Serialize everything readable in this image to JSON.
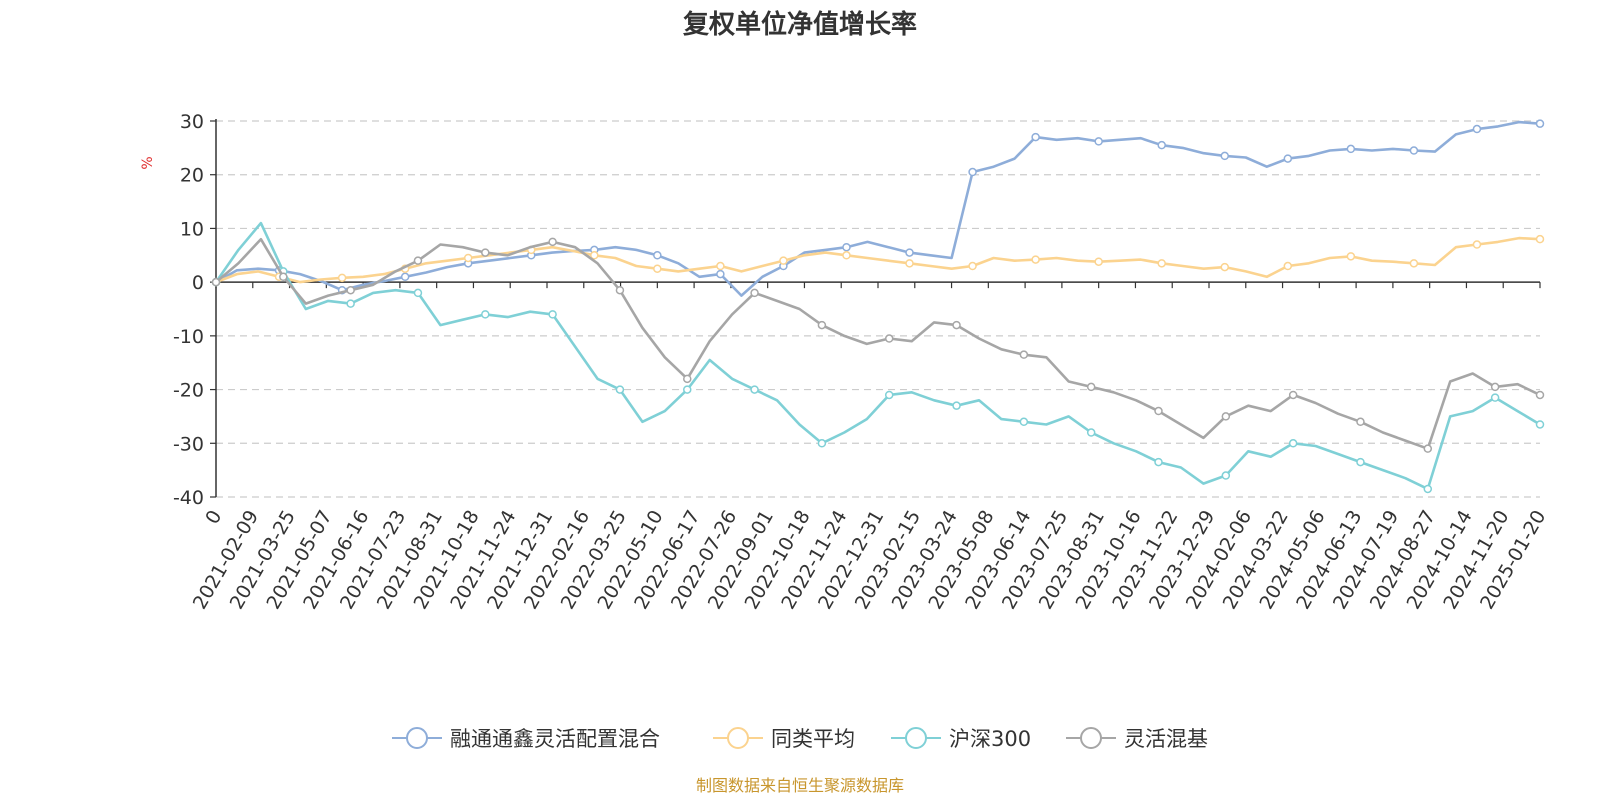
{
  "chart_data": {
    "type": "line",
    "title": "复权单位净值增长率",
    "ylabel": "%",
    "ylim": [
      -40,
      30
    ],
    "yticks": [
      30,
      20,
      10,
      0,
      -10,
      -20,
      -30,
      -40
    ],
    "x_tick_labels": [
      "0",
      "2021-02-09",
      "2021-03-25",
      "2021-05-07",
      "2021-06-16",
      "2021-07-23",
      "2021-08-31",
      "2021-10-18",
      "2021-11-24",
      "2021-12-31",
      "2022-02-16",
      "2022-03-25",
      "2022-05-10",
      "2022-06-17",
      "2022-07-26",
      "2022-09-01",
      "2022-10-18",
      "2022-11-24",
      "2022-12-31",
      "2023-02-15",
      "2023-03-24",
      "2023-05-08",
      "2023-06-14",
      "2023-07-25",
      "2023-08-31",
      "2023-10-16",
      "2023-11-22",
      "2023-12-29",
      "2024-02-06",
      "2024-03-22",
      "2024-05-06",
      "2024-06-13",
      "2024-07-19",
      "2024-08-27",
      "2024-10-14",
      "2024-11-20",
      "2025-01-20"
    ],
    "grid": "horizontal dashed",
    "legend_position": "bottom",
    "series": [
      {
        "name": "融通通鑫灵活配置混合",
        "color": "#8eadd9",
        "values": [
          0,
          2.2,
          2.5,
          2.2,
          1.5,
          0.2,
          -1.5,
          -0.5,
          0.2,
          1.0,
          1.8,
          2.8,
          3.5,
          4.0,
          4.5,
          5.0,
          5.5,
          5.8,
          6.0,
          6.5,
          6.0,
          5.0,
          3.5,
          1.0,
          1.5,
          -2.5,
          1.0,
          3.0,
          5.5,
          6.0,
          6.5,
          7.5,
          6.5,
          5.5,
          5.0,
          4.5,
          20.5,
          21.5,
          23.0,
          27.0,
          26.5,
          26.8,
          26.2,
          26.5,
          26.8,
          25.5,
          25.0,
          24.0,
          23.5,
          23.2,
          21.5,
          23.0,
          23.5,
          24.5,
          24.8,
          24.5,
          24.8,
          24.5,
          24.3,
          27.5,
          28.5,
          29.0,
          29.8,
          29.5
        ]
      },
      {
        "name": "同类平均",
        "color": "#fbd38f",
        "values": [
          0,
          1.5,
          2.0,
          1.0,
          0.0,
          0.5,
          0.8,
          1.0,
          1.5,
          2.5,
          3.5,
          4.0,
          4.5,
          5.0,
          5.5,
          6.0,
          6.5,
          5.8,
          5.0,
          4.5,
          3.0,
          2.5,
          2.0,
          2.5,
          3.0,
          2.0,
          3.0,
          4.0,
          5.0,
          5.5,
          5.0,
          4.5,
          4.0,
          3.5,
          3.0,
          2.5,
          3.0,
          4.5,
          4.0,
          4.2,
          4.5,
          4.0,
          3.8,
          4.0,
          4.2,
          3.5,
          3.0,
          2.5,
          2.8,
          2.0,
          1.0,
          3.0,
          3.5,
          4.5,
          4.8,
          4.0,
          3.8,
          3.5,
          3.2,
          6.5,
          7.0,
          7.5,
          8.2,
          8.0
        ]
      },
      {
        "name": "沪深300",
        "color": "#7fd0d6",
        "values": [
          0,
          6.0,
          11.0,
          2.0,
          -5.0,
          -3.5,
          -4.0,
          -2.0,
          -1.5,
          -2.0,
          -8.0,
          -7.0,
          -6.0,
          -6.5,
          -5.5,
          -6.0,
          -12.0,
          -18.0,
          -20.0,
          -26.0,
          -24.0,
          -20.0,
          -14.5,
          -18.0,
          -20.0,
          -22.0,
          -26.5,
          -30.0,
          -28.0,
          -25.5,
          -21.0,
          -20.5,
          -22.0,
          -23.0,
          -22.0,
          -25.5,
          -26.0,
          -26.5,
          -25.0,
          -28.0,
          -30.0,
          -31.5,
          -33.5,
          -34.5,
          -37.5,
          -36.0,
          -31.5,
          -32.5,
          -30.0,
          -30.5,
          -32.0,
          -33.5,
          -35.0,
          -36.5,
          -38.5,
          -25.0,
          -24.0,
          -21.5,
          -24.0,
          -26.5
        ]
      },
      {
        "name": "灵活混基",
        "color": "#a6a6a6",
        "values": [
          0,
          3.5,
          8.0,
          1.0,
          -4.0,
          -2.5,
          -1.5,
          -0.5,
          2.0,
          4.0,
          7.0,
          6.5,
          5.5,
          5.0,
          6.5,
          7.5,
          6.5,
          3.5,
          -1.5,
          -8.5,
          -14.0,
          -18.0,
          -11.0,
          -6.0,
          -2.0,
          -3.5,
          -5.0,
          -8.0,
          -10.0,
          -11.5,
          -10.5,
          -11.0,
          -7.5,
          -8.0,
          -10.5,
          -12.5,
          -13.5,
          -14.0,
          -18.5,
          -19.5,
          -20.5,
          -22.0,
          -24.0,
          -26.5,
          -29.0,
          -25.0,
          -23.0,
          -24.0,
          -21.0,
          -22.5,
          -24.5,
          -26.0,
          -28.0,
          -29.5,
          -31.0,
          -18.5,
          -17.0,
          -19.5,
          -19.0,
          -21.0
        ]
      }
    ],
    "source_note": "制图数据来自恒生聚源数据库"
  }
}
